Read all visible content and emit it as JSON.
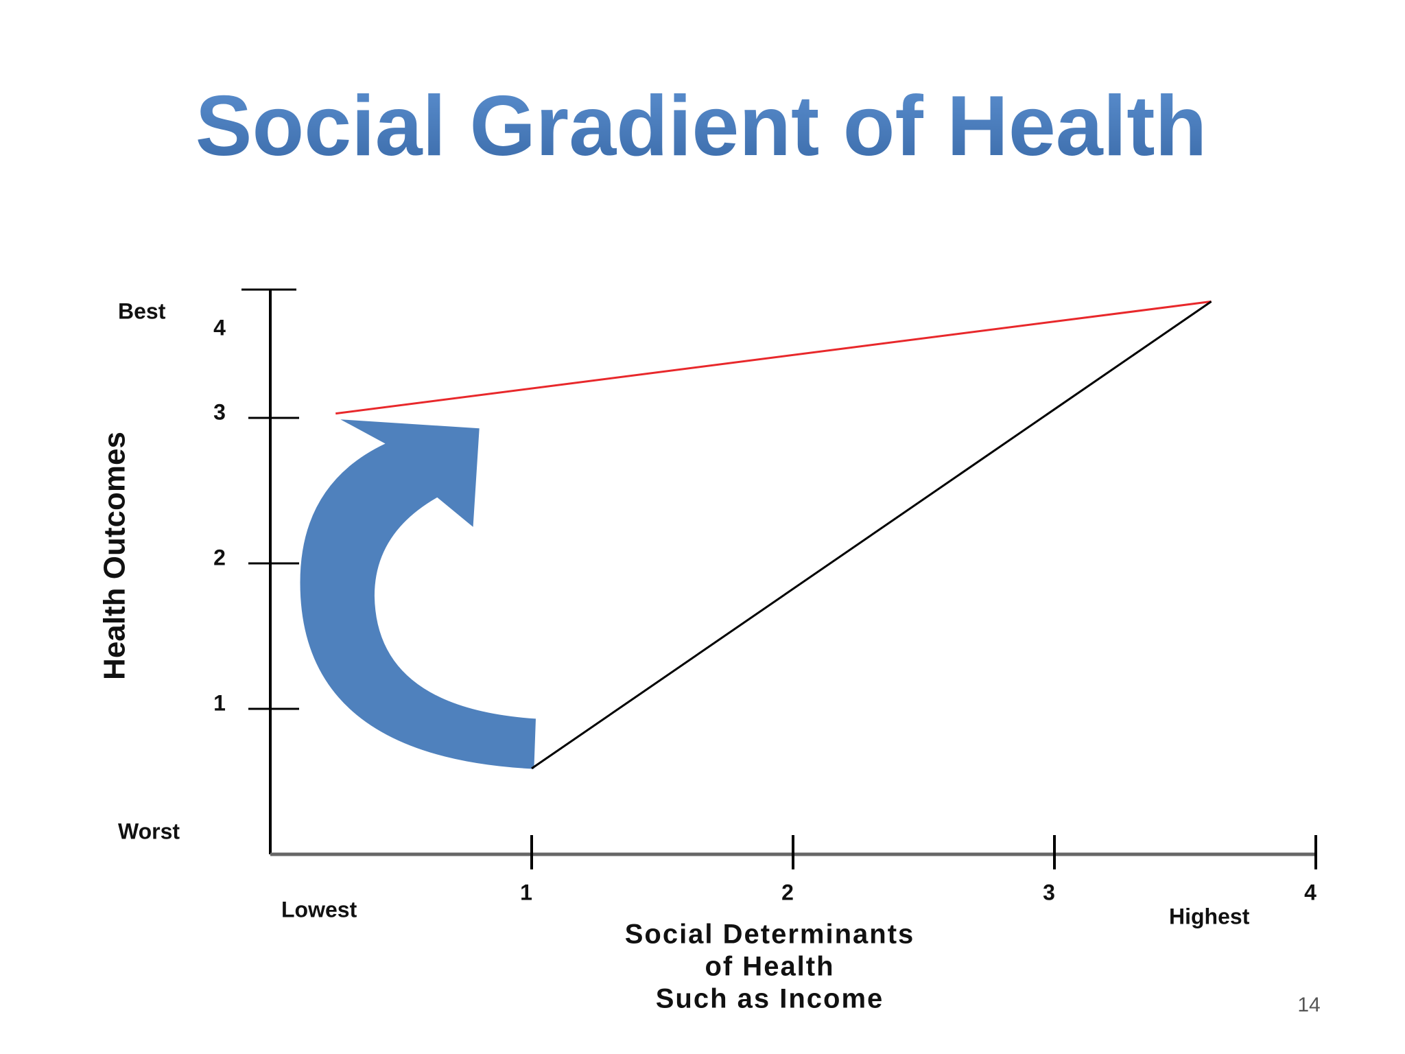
{
  "chart_data": {
    "type": "line",
    "title": "Social Gradient of Health",
    "ylabel": "Health Outcomes",
    "xlabel": [
      "Social Determinants",
      "of Health",
      "Such as Income"
    ],
    "annotations": {
      "best": "Best",
      "worst": "Worst",
      "lowest": "Lowest",
      "highest": "Highest"
    },
    "xlim": [
      0,
      4
    ],
    "ylim": [
      0,
      4
    ],
    "xticks": [
      1,
      2,
      3,
      4
    ],
    "yticks": [
      1,
      2,
      3,
      4
    ],
    "series": [
      {
        "name": null,
        "color": "#e8282b",
        "x": [
          0.25,
          3.6
        ],
        "values": [
          3.03,
          3.8
        ]
      },
      {
        "name": null,
        "color": "#000000",
        "x": [
          1.0,
          3.6
        ],
        "values": [
          0.59,
          3.8
        ]
      }
    ]
  },
  "slide_number": "14"
}
